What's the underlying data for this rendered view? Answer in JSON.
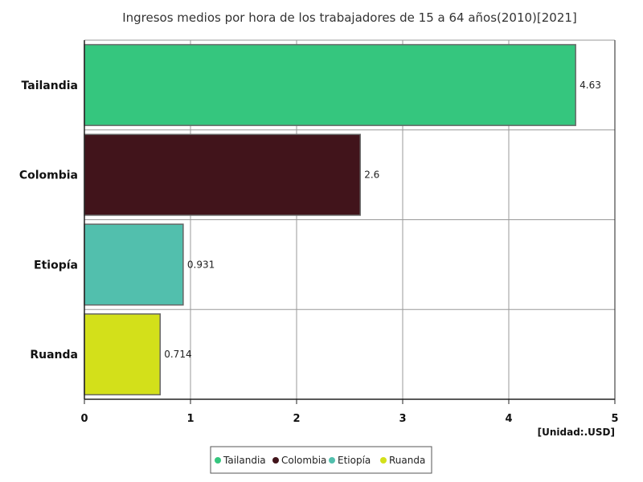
{
  "chart_data": {
    "type": "bar",
    "orientation": "horizontal",
    "title": "Ingresos medios por hora de los trabajadores de 15 a 64 años(2010)[2021]",
    "unit": "[Unidad:.USD]",
    "categories": [
      "Tailandia",
      "Colombia",
      "Etiopía",
      "Ruanda"
    ],
    "values": [
      4.63,
      2.6,
      0.931,
      0.714
    ],
    "value_labels": [
      "4.63",
      "2.6",
      "0.931",
      "0.714"
    ],
    "colors": [
      "#35c67e",
      "#41141b",
      "#52bfad",
      "#d3e01a"
    ],
    "xlim": [
      0,
      5
    ],
    "xticks": [
      "0",
      "1",
      "2",
      "3",
      "4",
      "5"
    ],
    "grid": true,
    "legend": {
      "placement": "bottom-center",
      "entries": [
        "Tailandia",
        "Colombia",
        "Etiopía",
        "Ruanda"
      ]
    }
  }
}
